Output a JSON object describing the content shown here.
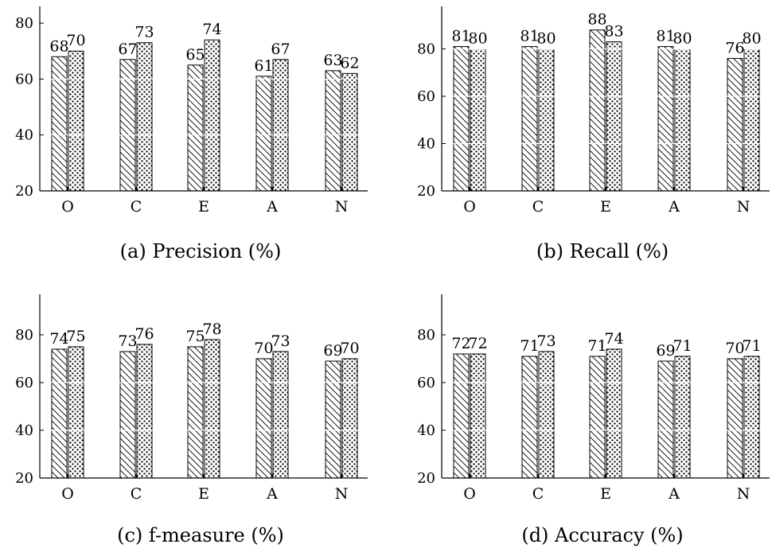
{
  "chart_data": [
    {
      "type": "bar",
      "caption": "(a) Precision (%)",
      "categories": [
        "O",
        "C",
        "E",
        "A",
        "N"
      ],
      "series": [
        {
          "pattern": "diagonal-hatch",
          "values": [
            68,
            67,
            65,
            61,
            63
          ]
        },
        {
          "pattern": "dots",
          "values": [
            70,
            73,
            74,
            67,
            62
          ]
        }
      ],
      "yticks": [
        20,
        40,
        60,
        80
      ],
      "ylim": [
        20,
        86
      ],
      "grid": "horizontal (white lines over bars)"
    },
    {
      "type": "bar",
      "caption": "(b) Recall (%)",
      "categories": [
        "O",
        "C",
        "E",
        "A",
        "N"
      ],
      "series": [
        {
          "pattern": "diagonal-hatch",
          "values": [
            81,
            81,
            88,
            81,
            76
          ]
        },
        {
          "pattern": "dots",
          "values": [
            80,
            80,
            83,
            80,
            80
          ]
        }
      ],
      "yticks": [
        20,
        40,
        60,
        80
      ],
      "ylim": [
        20,
        98
      ],
      "grid": "horizontal (white lines over bars)"
    },
    {
      "type": "bar",
      "caption": "(c) f-measure (%)",
      "categories": [
        "O",
        "C",
        "E",
        "A",
        "N"
      ],
      "series": [
        {
          "pattern": "diagonal-hatch",
          "values": [
            74,
            73,
            75,
            70,
            69
          ]
        },
        {
          "pattern": "dots",
          "values": [
            75,
            76,
            78,
            73,
            70
          ]
        }
      ],
      "yticks": [
        20,
        40,
        60,
        80
      ],
      "ylim": [
        20,
        97
      ],
      "grid": "horizontal (white lines over bars)"
    },
    {
      "type": "bar",
      "caption": "(d) Accuracy (%)",
      "categories": [
        "O",
        "C",
        "E",
        "A",
        "N"
      ],
      "series": [
        {
          "pattern": "diagonal-hatch",
          "values": [
            72,
            71,
            71,
            69,
            70
          ]
        },
        {
          "pattern": "dots",
          "values": [
            72,
            73,
            74,
            71,
            71
          ]
        }
      ],
      "yticks": [
        20,
        40,
        60,
        80
      ],
      "ylim": [
        20,
        97
      ],
      "grid": "horizontal (white lines over bars)"
    }
  ]
}
